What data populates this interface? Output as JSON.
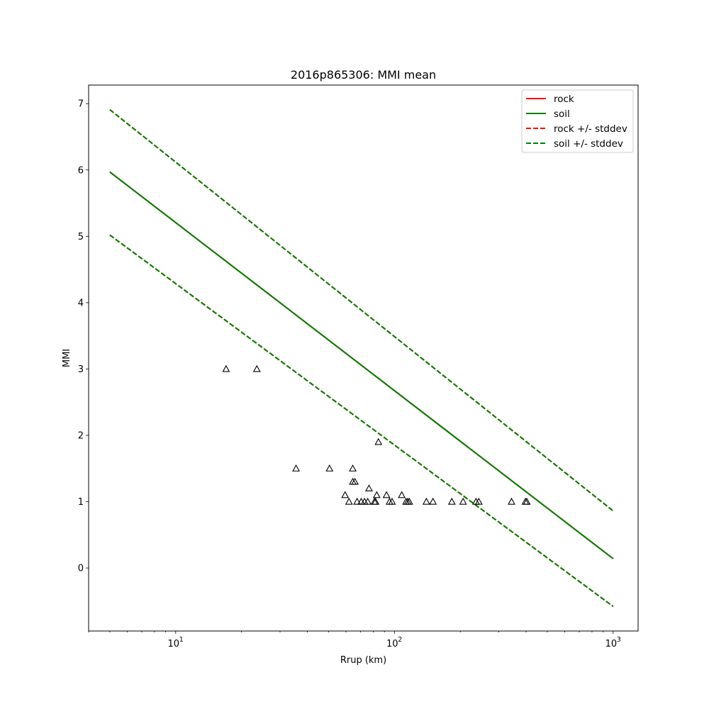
{
  "chart_data": {
    "type": "line",
    "title": "2016p865306: MMI mean",
    "xlabel": "Rrup (km)",
    "ylabel": "MMI",
    "xscale": "log",
    "xlim": [
      4,
      1300
    ],
    "ylim": [
      -0.95,
      7.28
    ],
    "grid": false,
    "legend_position": "top-right",
    "x_ticks": [
      {
        "value": 10,
        "base": "10",
        "exp": "1"
      },
      {
        "value": 100,
        "base": "10",
        "exp": "2"
      },
      {
        "value": 1000,
        "base": "10",
        "exp": "3"
      }
    ],
    "y_ticks": [
      0,
      1,
      2,
      3,
      4,
      5,
      6,
      7
    ],
    "series": [
      {
        "name": "rock",
        "style": "solid",
        "color": "#ff0000",
        "x": [
          5,
          1000
        ],
        "y": [
          5.97,
          0.14
        ]
      },
      {
        "name": "soil",
        "style": "solid",
        "color": "#008000",
        "x": [
          5,
          1000
        ],
        "y": [
          5.97,
          0.14
        ]
      },
      {
        "name": "rock +/- stddev",
        "style": "dashed",
        "color": "#ff0000",
        "x": [
          5,
          1000
        ],
        "y_upper": [
          6.91,
          0.86
        ],
        "y_lower": [
          5.02,
          -0.58
        ]
      },
      {
        "name": "soil +/- stddev",
        "style": "dashed",
        "color": "#008000",
        "x": [
          5,
          1000
        ],
        "y_upper": [
          6.91,
          0.86
        ],
        "y_lower": [
          5.02,
          -0.58
        ]
      }
    ],
    "observations": {
      "marker": "triangle",
      "points": [
        [
          17,
          3.0
        ],
        [
          23.5,
          3.0
        ],
        [
          35.5,
          1.5
        ],
        [
          50.5,
          1.5
        ],
        [
          64.5,
          1.5
        ],
        [
          64.5,
          1.3
        ],
        [
          66,
          1.3
        ],
        [
          59.5,
          1.1
        ],
        [
          62,
          1.0
        ],
        [
          67.5,
          1.0
        ],
        [
          70.5,
          1.0
        ],
        [
          73,
          1.0
        ],
        [
          75.5,
          1.0
        ],
        [
          76.5,
          1.2
        ],
        [
          81,
          1.0
        ],
        [
          82,
          1.0
        ],
        [
          83,
          1.1
        ],
        [
          84.5,
          1.9
        ],
        [
          92,
          1.1
        ],
        [
          95,
          1.0
        ],
        [
          97.5,
          1.0
        ],
        [
          108,
          1.1
        ],
        [
          113,
          1.0
        ],
        [
          115,
          1.0
        ],
        [
          117,
          1.0
        ],
        [
          140,
          1.0
        ],
        [
          150,
          1.0
        ],
        [
          183,
          1.0
        ],
        [
          206,
          1.0
        ],
        [
          236,
          1.0
        ],
        [
          243,
          1.0
        ],
        [
          343,
          1.0
        ],
        [
          397,
          1.0
        ],
        [
          403,
          1.0
        ]
      ]
    }
  }
}
